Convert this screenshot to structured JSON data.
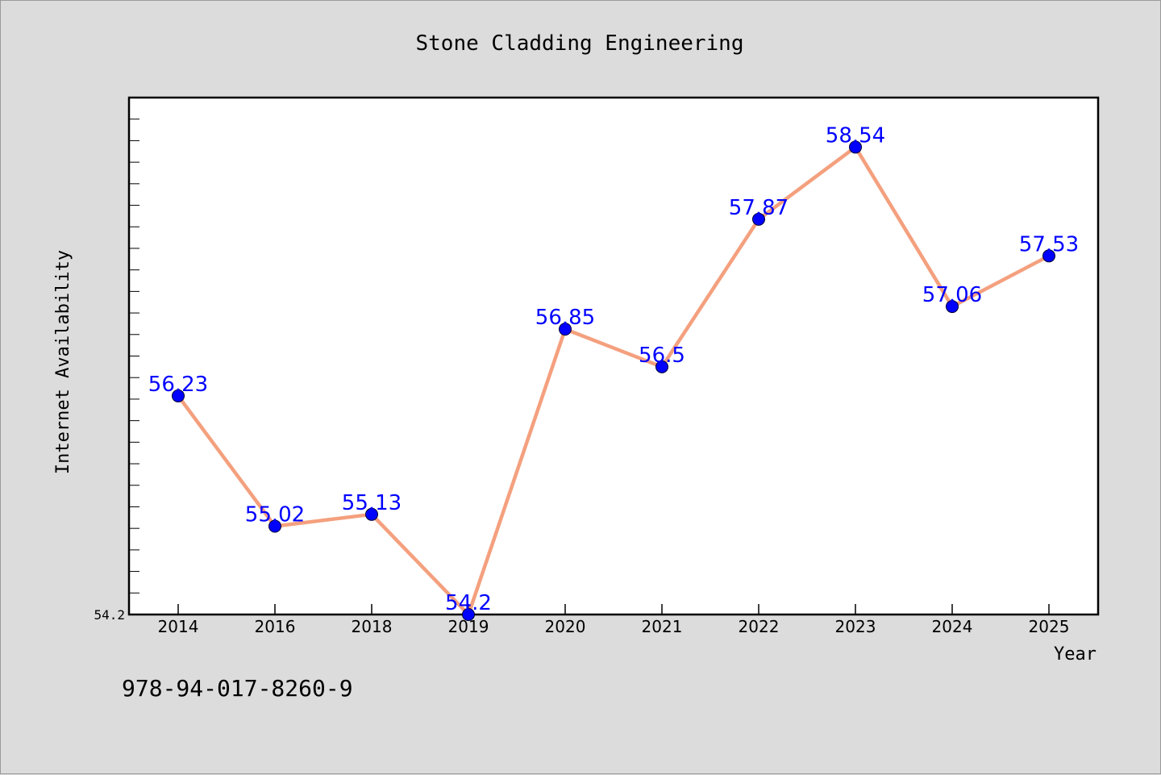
{
  "chart_data": {
    "type": "line",
    "title": "Stone Cladding Engineering",
    "xlabel": "Year",
    "ylabel": "Internet Availability",
    "categories": [
      "2014",
      "2016",
      "2018",
      "2019",
      "2020",
      "2021",
      "2022",
      "2023",
      "2024",
      "2025"
    ],
    "series": [
      {
        "values": [
          56.23,
          55.02,
          55.13,
          54.2,
          56.85,
          56.5,
          57.87,
          58.54,
          57.06,
          57.53
        ]
      }
    ],
    "data_labels": [
      "56.23",
      "55.02",
      "55.13",
      "54.2",
      "56.85",
      "56.5",
      "57.87",
      "58.54",
      "57.06",
      "57.53"
    ],
    "y_tick_labels": [
      "54.2"
    ],
    "ylim": [
      54.2,
      59.0
    ],
    "grid": false,
    "line_color": "#f4a07e",
    "marker_color": "#0000ff"
  },
  "footer": {
    "isbn": "978-94-017-8260-9"
  }
}
